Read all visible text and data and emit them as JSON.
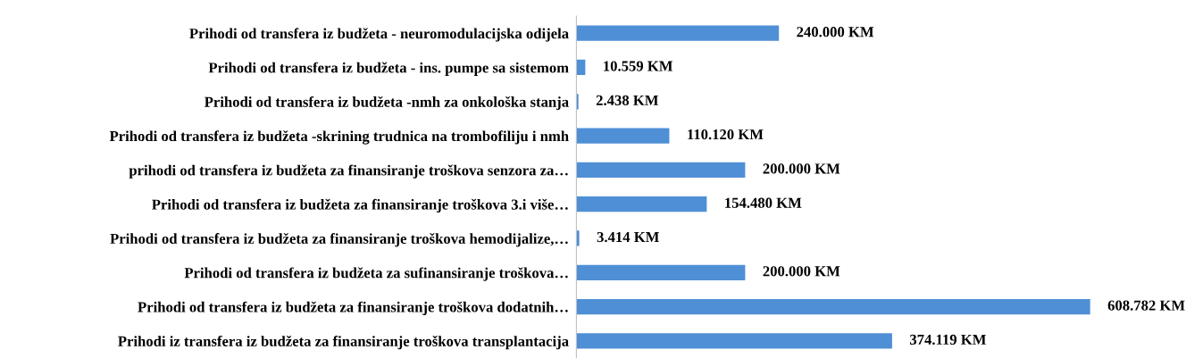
{
  "chart_data": {
    "type": "bar",
    "orientation": "horizontal",
    "categories": [
      "Prihodi od transfera iz budžeta - neuromodulacijska odijela",
      "Prihodi od transfera iz budžeta - ins. pumpe sa sistemom",
      "Prihodi od transfera iz budžeta -nmh za onkološka stanja",
      "Prihodi od transfera iz budžeta -skrining trudnica na trombofiliju i nmh",
      "prihodi od transfera iz budžeta za finansiranje troškova senzora za…",
      "Prihodi od transfera iz budžeta za finansiranje troškova 3.i više…",
      "Prihodi od transfera iz budžeta za finansiranje troškova hemodijalize,…",
      "Prihodi od transfera iz budžeta za sufinansiranje troškova…",
      "Prihodi od transfera iz budžeta za finansiranje troškova dodatnih…",
      "Prihodi iz transfera iz budžeta za finansiranje troškova transplantacija"
    ],
    "values": [
      240000,
      10559,
      2438,
      110120,
      200000,
      154480,
      3414,
      200000,
      608782,
      374119
    ],
    "value_labels": [
      "240.000 KM",
      "10.559 KM",
      "2.438 KM",
      "110.120 KM",
      "200.000 KM",
      "154.480 KM",
      "3.414 KM",
      "200.000 KM",
      "608.782 KM",
      "374.119 KM"
    ],
    "color": "#4f8fd6",
    "grid": false,
    "legend": false
  }
}
